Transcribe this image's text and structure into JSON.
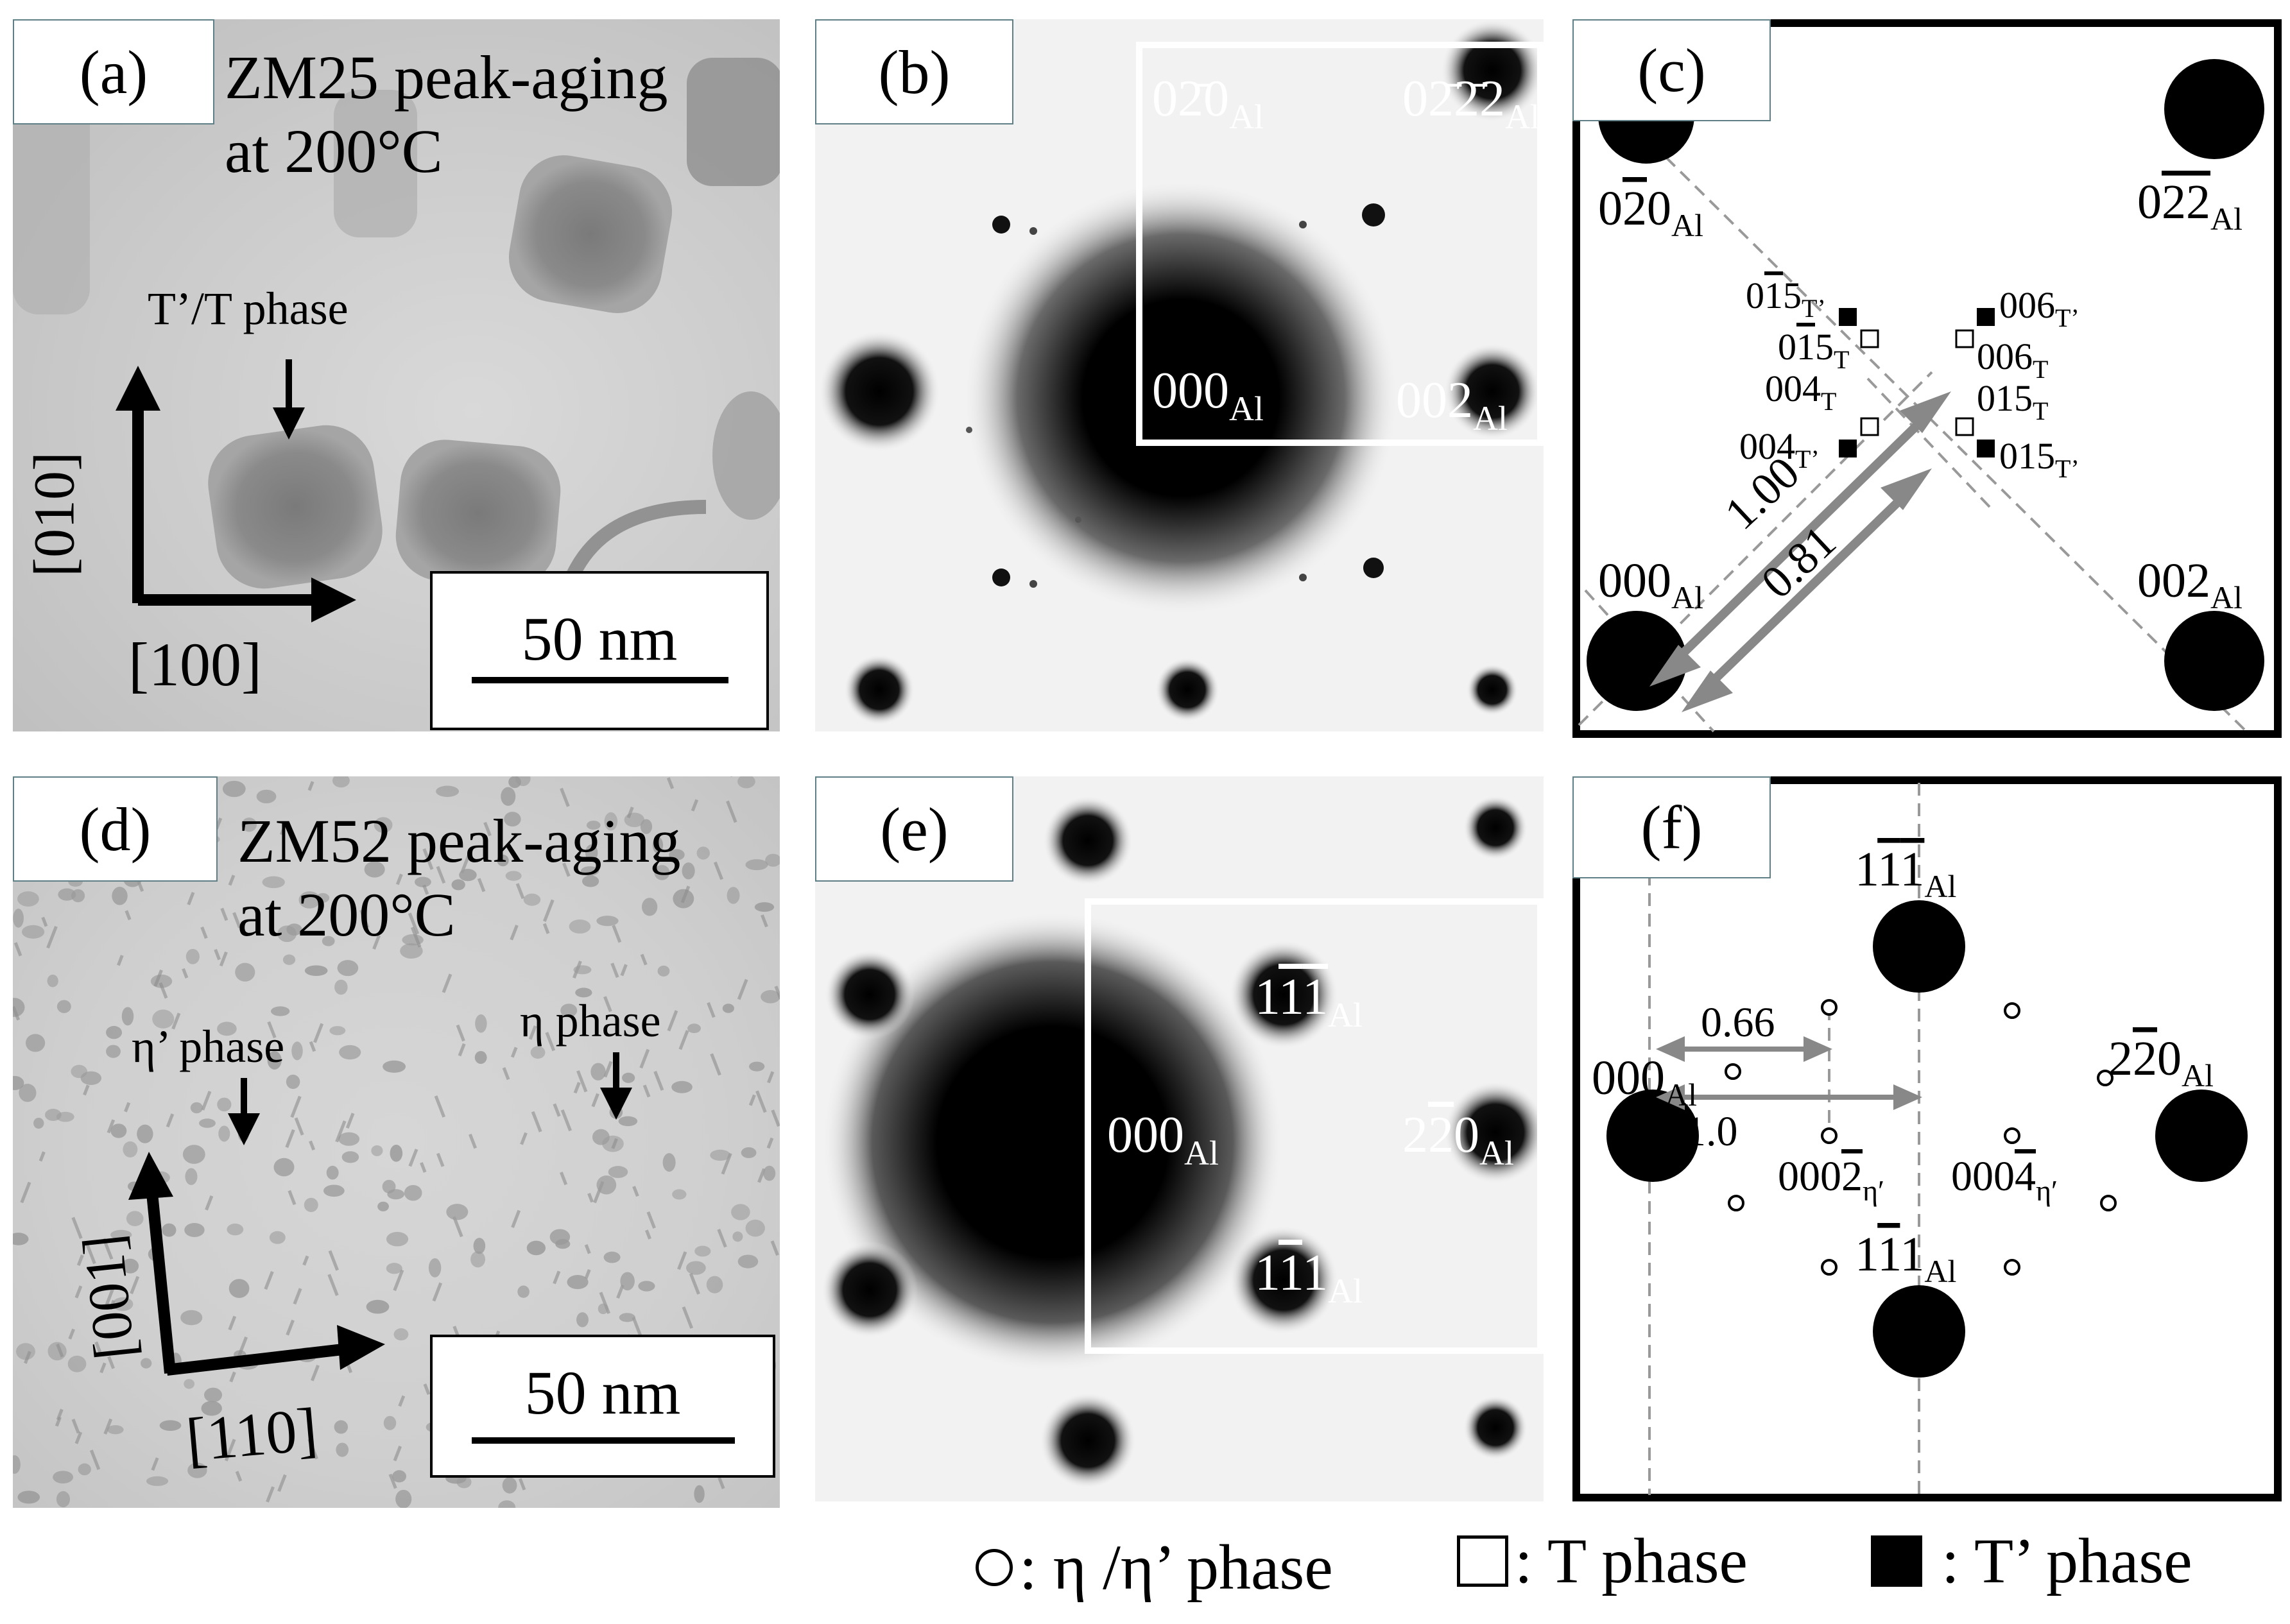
{
  "panels": {
    "a": {
      "tag": "(a)",
      "title_line1": "ZM25 peak-aging",
      "title_line2": "at 200°C",
      "arrow_label": "T’/T phase",
      "axis_vertical": "[010]",
      "axis_horizontal": "[100]",
      "scale": "50 nm"
    },
    "b": {
      "tag": "(b)",
      "spots": {
        "top_left": {
          "base": "0",
          "bar": "2̄",
          "rest": "0",
          "sub": "Al"
        },
        "top_right": {
          "base": "0",
          "bar": "2̄2̄",
          "rest": "2",
          "sub": "Al"
        },
        "center": {
          "base": "000",
          "sub": "Al"
        },
        "right": {
          "base": "002",
          "sub": "Al"
        }
      }
    },
    "c": {
      "tag": "(c)",
      "labels": {
        "tl": "0",
        "tl_bar": "2",
        "tl_end": "0",
        "tl_sub": "Al",
        "tr": "0",
        "tr_bar": "2",
        "tr_bar2": "2",
        "tr_sub": "Al",
        "bl": "000",
        "bl_sub": "Al",
        "br": "002",
        "br_sub": "Al",
        "p1": "0",
        "p1_bar": "1",
        "p1_end": "5",
        "p1_sub": "T’",
        "p2": "0",
        "p2_bar": "1",
        "p2_end": "5",
        "p2_sub": "T",
        "p3": "004",
        "p3_sub": "T",
        "p4": "004",
        "p4_sub": "T’",
        "p5": "006",
        "p5_sub": "T’",
        "p6": "006",
        "p6_sub": "T",
        "p7": "015",
        "p7_sub": "T",
        "p8": "015",
        "p8_sub": "T’",
        "d1": "1.00",
        "d2": "0.81"
      }
    },
    "d": {
      "tag": "(d)",
      "title_line1": "ZM52 peak-aging",
      "title_line2": "at 200°C",
      "arrow1_label": "η’ phase",
      "arrow2_label": "η phase",
      "axis_vertical": "[001]",
      "axis_horizontal": "[110]",
      "scale": "50 nm"
    },
    "e": {
      "tag": "(e)",
      "spots": {
        "top": {
          "text": "1",
          "bar": "1̄1̄",
          "sub": "Al"
        },
        "center": {
          "text": "000",
          "sub": "Al"
        },
        "right": {
          "text": "2",
          "sub": "Al"
        },
        "bottom": {
          "text": "1",
          "sub": "Al"
        }
      }
    },
    "f": {
      "tag": "(f)",
      "labels": {
        "top": "1",
        "top_b1": "1",
        "top_b2": "1",
        "top_sub": "Al",
        "left": "000",
        "left_sub": "Al",
        "right": "2",
        "right_b": "2",
        "right_end": "0",
        "right_sub": "Al",
        "bottom": "1",
        "bottom_b": "1",
        "bottom_end": "1",
        "bottom_sub": "Al",
        "eta1": "000",
        "eta1_b": "2",
        "eta1_sub": "η′",
        "eta2": "000",
        "eta2_b": "4",
        "eta2_sub": "η′",
        "d1": "0.66",
        "d2": "1.0"
      }
    }
  },
  "legend": {
    "eta": ": η /η’ phase",
    "t": ": T phase",
    "tprime": ": T’ phase"
  }
}
